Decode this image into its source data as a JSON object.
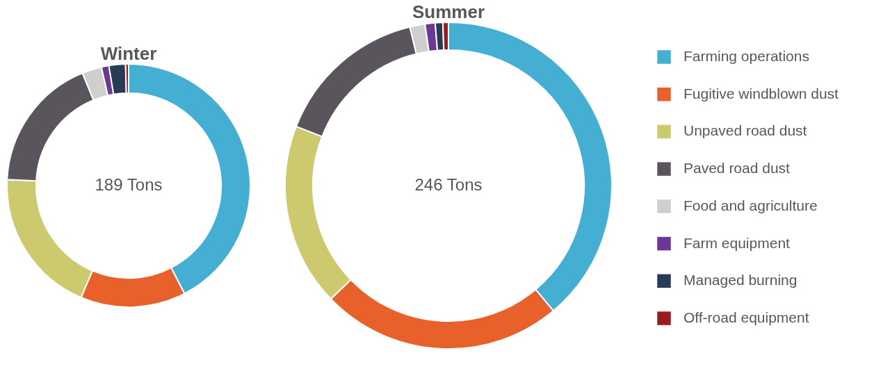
{
  "chart_data": [
    {
      "type": "donut",
      "title": "Winter",
      "annotations": [
        "189 Tons"
      ],
      "legend": false,
      "categories": [
        null,
        null,
        null,
        null,
        null,
        null,
        null,
        null
      ],
      "values": [
        42.4,
        14,
        19.4,
        18,
        2.6,
        1,
        2.2,
        0.4
      ],
      "colors": [
        "#45afd3",
        "#e8612a",
        "#ccc96f",
        "#5a555d",
        "#cfcfcf",
        "#6b3896",
        "#283a55",
        "#9b1b1e"
      ]
    },
    {
      "type": "donut",
      "title": "Summer",
      "annotations": [
        "246 Tons"
      ],
      "legend": "right",
      "categories": [
        "Farming operations",
        "Fugitive windblown dust",
        "Unpaved road dust",
        "Paved road dust",
        "Food and agriculture",
        "Farm equipment",
        "Managed burning",
        "Off-road equipment"
      ],
      "values": [
        38.9,
        23.9,
        18.1,
        15.3,
        1.5,
        1,
        0.75,
        0.55
      ],
      "colors": [
        "#45afd3",
        "#e8612a",
        "#ccc96f",
        "#5a555d",
        "#cfcfcf",
        "#6b3896",
        "#283a55",
        "#9b1b1e"
      ]
    }
  ]
}
